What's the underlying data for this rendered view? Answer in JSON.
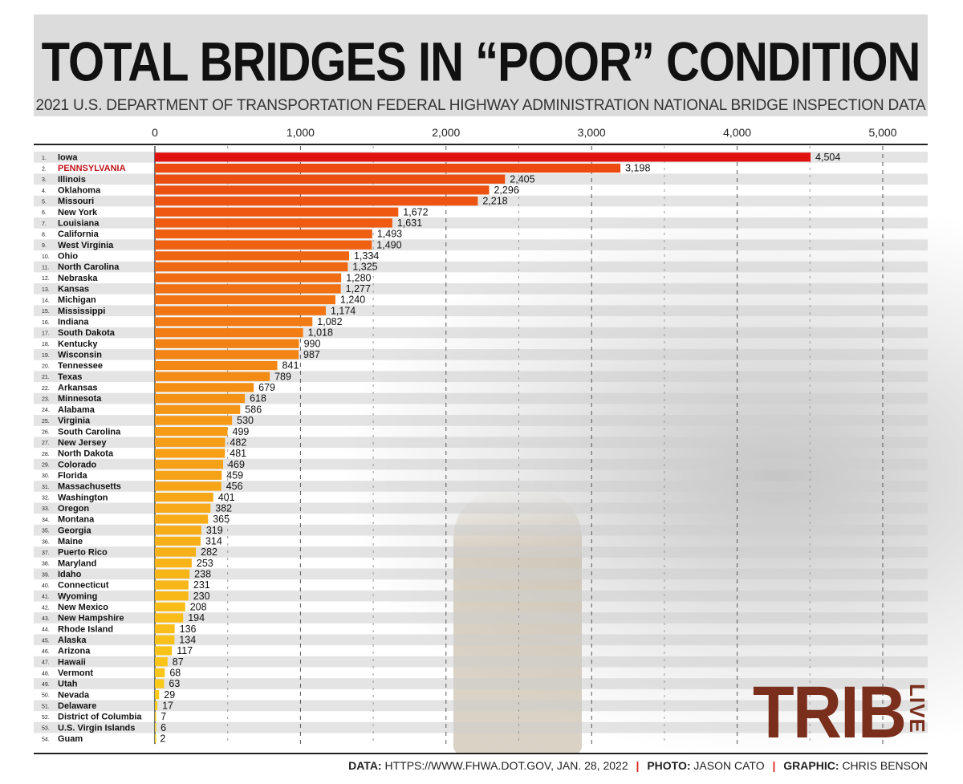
{
  "title": "TOTAL BRIDGES IN “POOR” CONDITION",
  "subtitle": "2021 U.S. DEPARTMENT OF TRANSPORTATION FEDERAL HIGHWAY ADMINISTRATION NATIONAL BRIDGE INSPECTION DATA",
  "footer": {
    "data_label": "DATA:",
    "data_value": "HTTPS://WWW.FHWA.DOT.GOV, JAN. 28, 2022",
    "photo_label": "PHOTO:",
    "photo_value": "JASON CATO",
    "graphic_label": "GRAPHIC:",
    "graphic_value": "CHRIS BENSON",
    "separator": "|"
  },
  "logo": {
    "main": "TRIB",
    "side": "LIVE"
  },
  "colors": {
    "first": "#e0120f",
    "highlight_label": "#c0121a",
    "gradient_top": "#ec4a10",
    "gradient_mid": "#f59a16",
    "gradient_bottom": "#fbd21a",
    "logo": "#7a2e1c"
  },
  "chart_data": {
    "type": "bar",
    "orientation": "horizontal",
    "xlim": [
      0,
      5000
    ],
    "grid": true,
    "ticks": [
      "0",
      "1,000",
      "2,000",
      "3,000",
      "4,000",
      "5,000"
    ],
    "tick_values": [
      0,
      1000,
      2000,
      3000,
      4000,
      5000
    ],
    "highlight": "PENNSYLVANIA",
    "ranks": [
      "1.",
      "2.",
      "3.",
      "4.",
      "5.",
      "6.",
      "7.",
      "8.",
      "9.",
      "10.",
      "11.",
      "12.",
      "13.",
      "14.",
      "15.",
      "16.",
      "17.",
      "18.",
      "19.",
      "20.",
      "21.",
      "22.",
      "23.",
      "24.",
      "25.",
      "26.",
      "27.",
      "28.",
      "29.",
      "30.",
      "31.",
      "32.",
      "33.",
      "34.",
      "35.",
      "36.",
      "37.",
      "38.",
      "39.",
      "40.",
      "41.",
      "42.",
      "43.",
      "44.",
      "45.",
      "46.",
      "47.",
      "48.",
      "49.",
      "50.",
      "51.",
      "52.",
      "53.",
      "54."
    ],
    "categories": [
      "Iowa",
      "PENNSYLVANIA",
      "Illinois",
      "Oklahoma",
      "Missouri",
      "New York",
      "Louisiana",
      "California",
      "West Virginia",
      "Ohio",
      "North Carolina",
      "Nebraska",
      "Kansas",
      "Michigan",
      "Mississippi",
      "Indiana",
      "South Dakota",
      "Kentucky",
      "Wisconsin",
      "Tennessee",
      "Texas",
      "Arkansas",
      "Minnesota",
      "Alabama",
      "Virginia",
      "South Carolina",
      "New Jersey",
      "North Dakota",
      "Colorado",
      "Florida",
      "Massachusetts",
      "Washington",
      "Oregon",
      "Montana",
      "Georgia",
      "Maine",
      "Puerto Rico",
      "Maryland",
      "Idaho",
      "Connecticut",
      "Wyoming",
      "New Mexico",
      "New Hampshire",
      "Rhode Island",
      "Alaska",
      "Arizona",
      "Hawaii",
      "Vermont",
      "Utah",
      "Nevada",
      "Delaware",
      "District of Columbia",
      "U.S. Virgin Islands",
      "Guam"
    ],
    "values": [
      4504,
      3198,
      2405,
      2296,
      2218,
      1672,
      1631,
      1493,
      1490,
      1334,
      1325,
      1280,
      1277,
      1240,
      1174,
      1082,
      1018,
      990,
      987,
      841,
      789,
      679,
      618,
      586,
      530,
      499,
      482,
      481,
      469,
      459,
      456,
      401,
      382,
      365,
      319,
      314,
      282,
      253,
      238,
      231,
      230,
      208,
      194,
      136,
      134,
      117,
      87,
      68,
      63,
      29,
      17,
      7,
      6,
      2
    ],
    "value_labels": [
      "4,504",
      "3,198",
      "2,405",
      "2,296",
      "2,218",
      "1,672",
      "1,631",
      "1,493",
      "1,490",
      "1,334",
      "1,325",
      "1,280",
      "1,277",
      "1,240",
      "1,174",
      "1,082",
      "1,018",
      "990",
      "987",
      "841",
      "789",
      "679",
      "618",
      "586",
      "530",
      "499",
      "482",
      "481",
      "469",
      "459",
      "456",
      "401",
      "382",
      "365",
      "319",
      "314",
      "282",
      "253",
      "238",
      "231",
      "230",
      "208",
      "194",
      "136",
      "134",
      "117",
      "87",
      "68",
      "63",
      "29",
      "17",
      "7",
      "6",
      "2"
    ]
  }
}
